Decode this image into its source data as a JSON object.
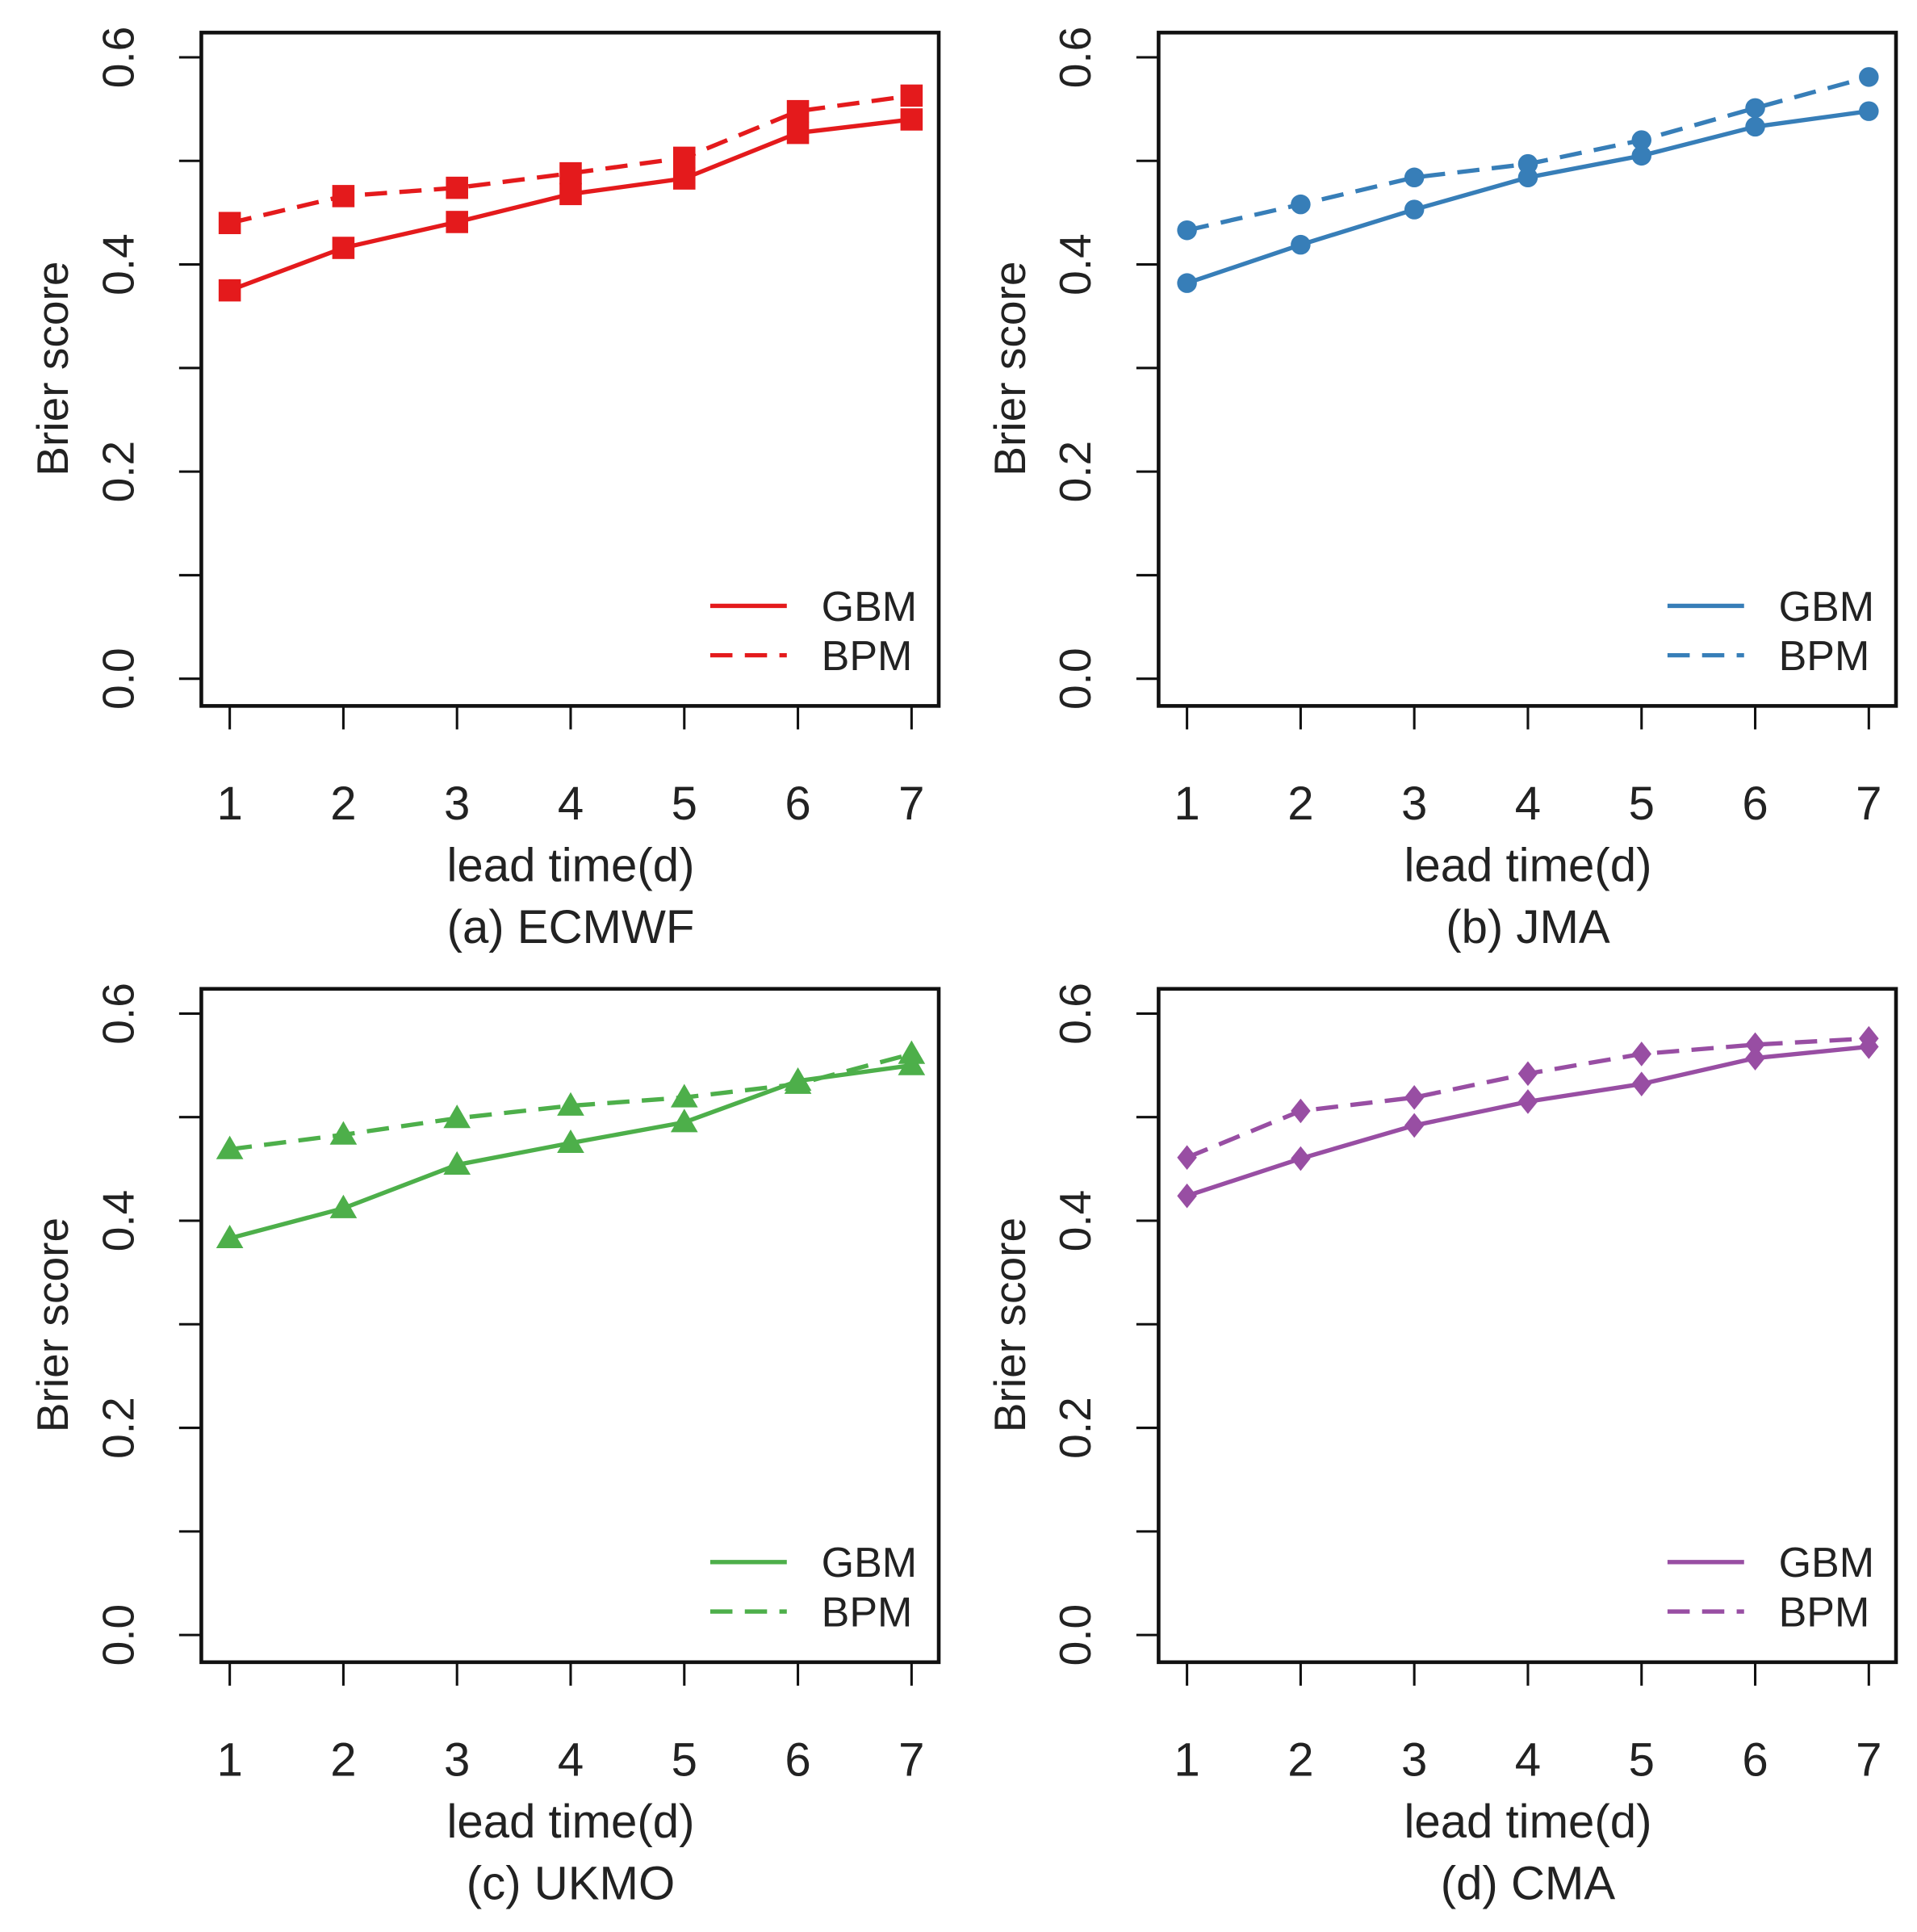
{
  "chart_data": [
    {
      "type": "line",
      "caption": "(a) ECMWF",
      "color": "#e41a1c",
      "marker": "square",
      "xlabel": "lead time(d)",
      "ylabel": "Brier score",
      "x": [
        1,
        2,
        3,
        4,
        5,
        6,
        7
      ],
      "ylim": [
        0,
        0.6
      ],
      "yticks": [
        "0.0",
        "0.2",
        "0.4",
        "0.6"
      ],
      "legend": "bottom-right",
      "series": [
        {
          "name": "GBM",
          "style": "solid",
          "values": [
            0.375,
            0.416,
            0.441,
            0.468,
            0.483,
            0.527,
            0.54
          ]
        },
        {
          "name": "BPM",
          "style": "dashed",
          "values": [
            0.44,
            0.466,
            0.474,
            0.488,
            0.503,
            0.548,
            0.563
          ]
        }
      ]
    },
    {
      "type": "line",
      "caption": "(b) JMA",
      "color": "#377eb8",
      "marker": "circle",
      "xlabel": "lead time(d)",
      "ylabel": "Brier score",
      "x": [
        1,
        2,
        3,
        4,
        5,
        6,
        7
      ],
      "ylim": [
        0,
        0.6
      ],
      "yticks": [
        "0.0",
        "0.2",
        "0.4",
        "0.6"
      ],
      "legend": "bottom-right",
      "series": [
        {
          "name": "GBM",
          "style": "solid",
          "values": [
            0.382,
            0.419,
            0.453,
            0.484,
            0.505,
            0.533,
            0.548
          ]
        },
        {
          "name": "BPM",
          "style": "dashed",
          "values": [
            0.433,
            0.458,
            0.484,
            0.497,
            0.52,
            0.551,
            0.581
          ]
        }
      ]
    },
    {
      "type": "line",
      "caption": "(c) UKMO",
      "color": "#4daf4a",
      "marker": "triangle",
      "xlabel": "lead time(d)",
      "ylabel": "Brier score",
      "x": [
        1,
        2,
        3,
        4,
        5,
        6,
        7
      ],
      "ylim": [
        0,
        0.6
      ],
      "yticks": [
        "0.0",
        "0.2",
        "0.4",
        "0.6"
      ],
      "legend": "bottom-right",
      "series": [
        {
          "name": "GBM",
          "style": "solid",
          "values": [
            0.383,
            0.412,
            0.454,
            0.475,
            0.495,
            0.535,
            0.55
          ]
        },
        {
          "name": "BPM",
          "style": "dashed",
          "values": [
            0.469,
            0.483,
            0.499,
            0.511,
            0.519,
            0.532,
            0.561
          ]
        }
      ]
    },
    {
      "type": "line",
      "caption": "(d) CMA",
      "color": "#984ea3",
      "marker": "diamond",
      "xlabel": "lead time(d)",
      "ylabel": "Brier score",
      "x": [
        1,
        2,
        3,
        4,
        5,
        6,
        7
      ],
      "ylim": [
        0,
        0.6
      ],
      "yticks": [
        "0.0",
        "0.2",
        "0.4",
        "0.6"
      ],
      "legend": "bottom-right",
      "series": [
        {
          "name": "GBM",
          "style": "solid",
          "values": [
            0.424,
            0.46,
            0.492,
            0.515,
            0.532,
            0.557,
            0.568
          ]
        },
        {
          "name": "BPM",
          "style": "dashed",
          "values": [
            0.461,
            0.506,
            0.519,
            0.542,
            0.561,
            0.57,
            0.576
          ]
        }
      ]
    }
  ]
}
